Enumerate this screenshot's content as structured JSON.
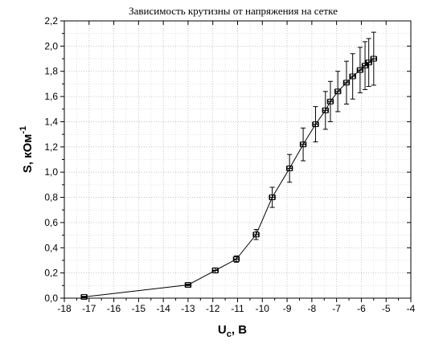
{
  "chart_data": {
    "type": "scatter",
    "title": "Зависимость крутизны от напряжения на сетке",
    "xlabel": {
      "main": "U",
      "sub": "c",
      "suffix": ", В"
    },
    "ylabel": {
      "main": "S, кОм",
      "sup": "-1"
    },
    "xlim": [
      -18,
      -4
    ],
    "ylim": [
      0,
      2.2
    ],
    "x_ticks": [
      -18,
      -17,
      -16,
      -15,
      -14,
      -13,
      -12,
      -11,
      -10,
      -9,
      -8,
      -7,
      -6,
      -5,
      -4
    ],
    "x_tick_labels": [
      "-18",
      "-17",
      "-16",
      "-15",
      "-14",
      "-13",
      "-12",
      "-11",
      "-10",
      "-9",
      "-8",
      "-7",
      "-6",
      "-5",
      "-4"
    ],
    "y_ticks": [
      0,
      0.2,
      0.4,
      0.6,
      0.8,
      1.0,
      1.2,
      1.4,
      1.6,
      1.8,
      2.0,
      2.2
    ],
    "y_tick_labels": [
      "0,0",
      "0,2",
      "0,4",
      "0,6",
      "0,8",
      "1,0",
      "1,2",
      "1,4",
      "1,6",
      "1,8",
      "2,0",
      "2,2"
    ],
    "grid": true,
    "legend": "none",
    "series": [
      {
        "marker": "square-cross",
        "line": true,
        "color": "#000000",
        "points": [
          {
            "x": -17.2,
            "y": 0.01,
            "err_y": 0.005,
            "err_x": 0.12
          },
          {
            "x": -13.0,
            "y": 0.105,
            "err_y": 0.008,
            "err_x": 0.12
          },
          {
            "x": -11.9,
            "y": 0.22,
            "err_y": 0.02,
            "err_x": 0.12
          },
          {
            "x": -11.05,
            "y": 0.31,
            "err_y": 0.025,
            "err_x": 0.12
          },
          {
            "x": -10.25,
            "y": 0.505,
            "err_y": 0.04,
            "err_x": 0.12
          },
          {
            "x": -9.6,
            "y": 0.8,
            "err_y": 0.08,
            "err_x": 0.12
          },
          {
            "x": -8.9,
            "y": 1.03,
            "err_y": 0.11,
            "err_x": 0.12
          },
          {
            "x": -8.35,
            "y": 1.22,
            "err_y": 0.13,
            "err_x": 0.12
          },
          {
            "x": -7.85,
            "y": 1.38,
            "err_y": 0.14,
            "err_x": 0.12
          },
          {
            "x": -7.45,
            "y": 1.49,
            "err_y": 0.15,
            "err_x": 0.12
          },
          {
            "x": -7.25,
            "y": 1.56,
            "err_y": 0.16,
            "err_x": 0.12
          },
          {
            "x": -6.95,
            "y": 1.64,
            "err_y": 0.16,
            "err_x": 0.12
          },
          {
            "x": -6.6,
            "y": 1.71,
            "err_y": 0.17,
            "err_x": 0.12
          },
          {
            "x": -6.35,
            "y": 1.76,
            "err_y": 0.18,
            "err_x": 0.12
          },
          {
            "x": -6.05,
            "y": 1.81,
            "err_y": 0.18,
            "err_x": 0.12
          },
          {
            "x": -5.85,
            "y": 1.845,
            "err_y": 0.19,
            "err_x": 0.12
          },
          {
            "x": -5.7,
            "y": 1.87,
            "err_y": 0.19,
            "err_x": 0.12
          },
          {
            "x": -5.5,
            "y": 1.9,
            "err_y": 0.21,
            "err_x": 0.12
          }
        ]
      }
    ]
  }
}
